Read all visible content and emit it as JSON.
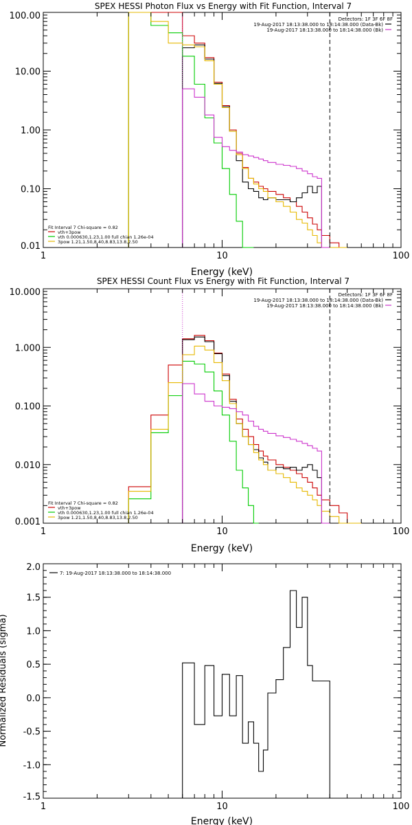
{
  "chart_data": [
    {
      "type": "line",
      "title": "SPEX HESSI Photon Flux vs Energy with Fit Function, Interval 7",
      "xlabel": "Energy (keV)",
      "ylabel": "",
      "x_scale": "log",
      "y_scale": "log",
      "xlim": [
        1,
        100
      ],
      "ylim": [
        0.01,
        100
      ],
      "x_ticks": [
        {
          "v": 1,
          "label": "1"
        },
        {
          "v": 10,
          "label": "10"
        },
        {
          "v": 100,
          "label": "100"
        }
      ],
      "y_ticks": [
        {
          "v": 0.01,
          "label": "0.01"
        },
        {
          "v": 0.1,
          "label": "0.10"
        },
        {
          "v": 1,
          "label": "1.00"
        },
        {
          "v": 10,
          "label": "10.00"
        },
        {
          "v": 100,
          "label": "100.00"
        }
      ],
      "legend_top": [
        {
          "text": "Detectors: 1F 3F 6F 8F",
          "color": ""
        },
        {
          "text": "19-Aug-2017 18:13:38.000 to 18:14:38.000 (Data-Bk)",
          "color": "#000000"
        },
        {
          "text": "19-Aug-2017 18:13:38.000 to 18:14:38.000 (Bk)",
          "color": "#cc33cc"
        }
      ],
      "legend_bottom": [
        {
          "text": "Fit Interval  7    Chi-square = 0.82",
          "color": ""
        },
        {
          "text": "vth+3pow",
          "color": "#cc0000"
        },
        {
          "text": "vth 0.000630,1.23,1.00   full chian 1.26e-04",
          "color": "#00cc00"
        },
        {
          "text": "3pow 1.21,1.50,8.40,8.83,13.8,2.50",
          "color": "#e6b800"
        }
      ],
      "vlines": [
        {
          "x": 6.0,
          "style": "dotted",
          "color": "#cc33cc"
        },
        {
          "x": 40.0,
          "style": "dashed",
          "color": "#000000"
        }
      ],
      "edges": [
        3.0,
        4.0,
        5.0,
        6.0,
        7.0,
        8.0,
        9.0,
        10.0,
        11.0,
        12.0,
        13.0,
        14.0,
        15.0,
        16.0,
        17.0,
        18.0,
        20.0,
        22.0,
        24.0,
        26.0,
        28.0,
        30.0,
        32.0,
        34.0,
        36.0,
        40.0,
        45.0,
        50.0
      ],
      "series": [
        {
          "name": "vth+3pow",
          "color": "#cc0000",
          "values": [
            100,
            100,
            120,
            40,
            30,
            17,
            6.5,
            2.6,
            1.0,
            0.4,
            0.23,
            0.15,
            0.13,
            0.11,
            0.1,
            0.09,
            0.08,
            0.07,
            0.06,
            0.05,
            0.04,
            0.032,
            0.025,
            0.02,
            0.016,
            0.012,
            0.01
          ]
        },
        {
          "name": "Data-Bk",
          "color": "#000000",
          "values": [
            null,
            null,
            null,
            25,
            28,
            16,
            6.2,
            2.5,
            0.95,
            0.3,
            0.13,
            0.1,
            0.09,
            0.07,
            0.065,
            0.07,
            0.065,
            0.065,
            0.06,
            0.07,
            0.085,
            0.11,
            0.085,
            0.11,
            null,
            null,
            null
          ]
        },
        {
          "name": "vth",
          "color": "#00cc00",
          "values": [
            100,
            60,
            45,
            18,
            6.0,
            1.6,
            0.6,
            0.22,
            0.08,
            0.028,
            0.01,
            0.005,
            null,
            null,
            null,
            null,
            null,
            null,
            null,
            null,
            null,
            null,
            null,
            null,
            null,
            null,
            null
          ]
        },
        {
          "name": "3pow",
          "color": "#e6b800",
          "values": [
            100,
            70,
            30,
            28,
            26,
            15,
            6.0,
            2.4,
            0.95,
            0.38,
            0.22,
            0.15,
            0.12,
            0.1,
            0.09,
            0.07,
            0.06,
            0.05,
            0.04,
            0.03,
            0.026,
            0.02,
            0.016,
            0.012,
            0.01,
            0.01,
            0.008
          ]
        },
        {
          "name": "Bk",
          "color": "#cc33cc",
          "values": [
            null,
            null,
            null,
            5.0,
            3.6,
            1.8,
            0.75,
            0.52,
            0.45,
            0.42,
            0.38,
            0.36,
            0.34,
            0.32,
            0.3,
            0.28,
            0.26,
            0.25,
            0.24,
            0.22,
            0.2,
            0.18,
            0.16,
            0.15,
            0.005,
            null,
            null
          ]
        }
      ]
    },
    {
      "type": "line",
      "title": "SPEX HESSI Count Flux vs Energy with Fit Function, Interval 7",
      "xlabel": "Energy (keV)",
      "ylabel": "",
      "x_scale": "log",
      "y_scale": "log",
      "xlim": [
        1,
        100
      ],
      "ylim": [
        0.001,
        10
      ],
      "x_ticks": [
        {
          "v": 1,
          "label": "1"
        },
        {
          "v": 10,
          "label": "10"
        },
        {
          "v": 100,
          "label": "100"
        }
      ],
      "y_ticks": [
        {
          "v": 0.001,
          "label": "0.001"
        },
        {
          "v": 0.01,
          "label": "0.010"
        },
        {
          "v": 0.1,
          "label": "0.100"
        },
        {
          "v": 1,
          "label": "1.000"
        },
        {
          "v": 10,
          "label": "10.000"
        }
      ],
      "legend_top": [
        {
          "text": "Detectors: 1F 3F 6F 8F",
          "color": ""
        },
        {
          "text": "19-Aug-2017 18:13:38.000 to 18:14:38.000 (Data-Bk)",
          "color": "#000000"
        },
        {
          "text": "19-Aug-2017 18:13:38.000 to 18:14:38.000 (Bk)",
          "color": "#cc33cc"
        }
      ],
      "legend_bottom": [
        {
          "text": "Fit Interval  7    Chi-square = 0.82",
          "color": ""
        },
        {
          "text": "vth+3pow",
          "color": "#cc0000"
        },
        {
          "text": "vth 0.000630,1.23,1.00   full chian 1.26e-04",
          "color": "#00cc00"
        },
        {
          "text": "3pow 1.21,1.50,8.40,8.83,13.8,2.50",
          "color": "#e6b800"
        }
      ],
      "vlines": [
        {
          "x": 6.0,
          "style": "dotted",
          "color": "#cc33cc"
        },
        {
          "x": 40.0,
          "style": "dashed",
          "color": "#000000"
        }
      ],
      "edges": [
        3.0,
        4.0,
        5.0,
        6.0,
        7.0,
        8.0,
        9.0,
        10.0,
        11.0,
        12.0,
        13.0,
        14.0,
        15.0,
        16.0,
        17.0,
        18.0,
        20.0,
        22.0,
        24.0,
        26.0,
        28.0,
        30.0,
        32.0,
        34.0,
        36.0,
        40.0,
        45.0,
        50.0,
        60.0
      ],
      "series": [
        {
          "name": "vth+3pow",
          "color": "#cc0000",
          "values": [
            0.0042,
            0.07,
            0.5,
            1.4,
            1.6,
            1.3,
            0.8,
            0.35,
            0.13,
            0.06,
            0.04,
            0.03,
            0.022,
            0.017,
            0.014,
            0.012,
            0.01,
            0.009,
            0.008,
            0.007,
            0.006,
            0.005,
            0.004,
            0.003,
            0.0025,
            0.002,
            0.0015,
            0.001
          ]
        },
        {
          "name": "Data-Bk",
          "color": "#000000",
          "values": [
            null,
            null,
            null,
            1.35,
            1.5,
            1.25,
            0.78,
            0.33,
            0.12,
            0.05,
            0.03,
            0.022,
            0.018,
            0.013,
            0.011,
            0.008,
            0.009,
            0.0085,
            0.009,
            0.008,
            0.009,
            0.01,
            0.008,
            0.006,
            null,
            null,
            null,
            null
          ]
        },
        {
          "name": "vth",
          "color": "#00cc00",
          "values": [
            0.0026,
            0.035,
            0.15,
            0.58,
            0.52,
            0.38,
            0.18,
            0.07,
            0.025,
            0.008,
            0.004,
            0.002,
            0.001,
            null,
            null,
            null,
            null,
            null,
            null,
            null,
            null,
            null,
            null,
            null,
            null,
            null,
            null,
            null
          ]
        },
        {
          "name": "3pow",
          "color": "#e6b800",
          "values": [
            0.0035,
            0.04,
            0.25,
            0.75,
            1.05,
            0.9,
            0.55,
            0.27,
            0.11,
            0.05,
            0.03,
            0.022,
            0.016,
            0.012,
            0.01,
            0.008,
            0.007,
            0.006,
            0.005,
            0.004,
            0.0035,
            0.003,
            0.0025,
            0.002,
            0.0016,
            0.0013,
            0.001,
            0.001
          ]
        },
        {
          "name": "Bk",
          "color": "#cc33cc",
          "values": [
            null,
            null,
            null,
            0.24,
            0.16,
            0.12,
            0.1,
            0.095,
            0.09,
            0.08,
            0.07,
            0.055,
            0.045,
            0.04,
            0.037,
            0.034,
            0.031,
            0.029,
            0.027,
            0.025,
            0.023,
            0.021,
            0.019,
            0.017,
            0.001,
            null,
            null,
            null
          ]
        }
      ]
    },
    {
      "type": "line",
      "title": "",
      "xlabel": "Energy (keV)",
      "ylabel": "Normalized Residuals (sigma)",
      "x_scale": "log",
      "y_scale": "linear",
      "xlim": [
        1,
        100
      ],
      "ylim": [
        -1.5,
        2.0
      ],
      "x_ticks": [
        {
          "v": 1,
          "label": "1"
        },
        {
          "v": 10,
          "label": "10"
        },
        {
          "v": 100,
          "label": "100"
        }
      ],
      "y_ticks": [
        {
          "v": -1.5,
          "label": "-1.5"
        },
        {
          "v": -1.0,
          "label": "-1.0"
        },
        {
          "v": -0.5,
          "label": "-0.5"
        },
        {
          "v": 0.0,
          "label": "0.0"
        },
        {
          "v": 0.5,
          "label": "0.5"
        },
        {
          "v": 1.0,
          "label": "1.0"
        },
        {
          "v": 1.5,
          "label": "1.5"
        },
        {
          "v": 2.0,
          "label": "2.0"
        }
      ],
      "legend_top": [
        {
          "text": "7: 19-Aug-2017 18:13:38.000 to 18:14:38.000",
          "color": "#000000"
        }
      ],
      "legend_bottom": [],
      "vlines": [],
      "edges": [
        6.0,
        7.0,
        8.0,
        9.0,
        10.0,
        11.0,
        12.0,
        13.0,
        14.0,
        15.0,
        16.0,
        17.0,
        18.0,
        20.0,
        22.0,
        24.0,
        26.0,
        28.0,
        30.0,
        32.0,
        34.0,
        36.0,
        40.0
      ],
      "series": [
        {
          "name": "",
          "color": "#000000",
          "values": [
            0.52,
            -0.4,
            0.48,
            -0.27,
            0.35,
            -0.27,
            0.33,
            -0.68,
            -0.36,
            -0.68,
            -1.1,
            -0.78,
            0.07,
            0.27,
            0.75,
            1.6,
            1.05,
            1.5,
            0.48,
            0.25,
            0.25,
            0.25
          ]
        }
      ]
    }
  ]
}
